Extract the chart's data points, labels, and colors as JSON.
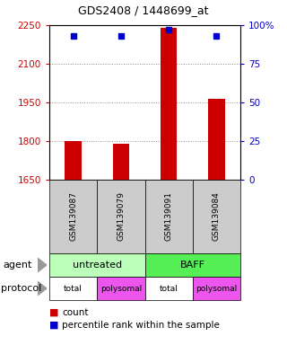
{
  "title": "GDS2408 / 1448699_at",
  "samples": [
    "GSM139087",
    "GSM139079",
    "GSM139091",
    "GSM139084"
  ],
  "bar_values": [
    1800,
    1790,
    2240,
    1965
  ],
  "percentile_values": [
    93,
    93,
    97,
    93
  ],
  "ylim_left": [
    1650,
    2250
  ],
  "yticks_left": [
    1650,
    1800,
    1950,
    2100,
    2250
  ],
  "yticks_right": [
    0,
    25,
    50,
    75,
    100
  ],
  "bar_color": "#cc0000",
  "dot_color": "#0000cc",
  "bar_width": 0.35,
  "agent_defs": [
    {
      "label": "untreated",
      "span": [
        0,
        2
      ],
      "color": "#bbffbb"
    },
    {
      "label": "BAFF",
      "span": [
        2,
        4
      ],
      "color": "#55ee55"
    }
  ],
  "proto_defs": [
    {
      "label": "total",
      "color": "#ffffff"
    },
    {
      "label": "polysomal",
      "color": "#ee55ee"
    },
    {
      "label": "total",
      "color": "#ffffff"
    },
    {
      "label": "polysomal",
      "color": "#ee55ee"
    }
  ],
  "grid_color": "#888888",
  "sample_box_color": "#cccccc",
  "left_tick_color": "#cc0000",
  "right_tick_color": "#0000cc",
  "legend_count_color": "#cc0000",
  "legend_dot_color": "#0000cc"
}
